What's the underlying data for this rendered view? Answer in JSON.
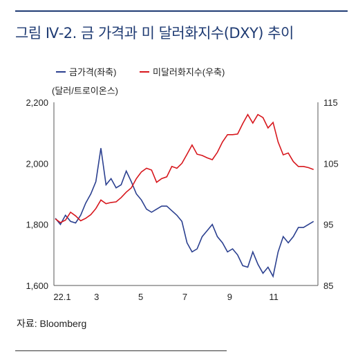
{
  "title": "그림 Ⅳ-2. 금 가격과 미 달러화지수(DXY) 추이",
  "source": "자료: Bloomberg",
  "chart_data": {
    "type": "line",
    "unit_label": "(달러/트로이온스)",
    "x_ticks": [
      "22.1",
      "3",
      "5",
      "7",
      "9",
      "11"
    ],
    "y_left": {
      "ticks": [
        "2,200",
        "2,000",
        "1,800",
        "1,600"
      ],
      "lim": [
        1600,
        2200
      ]
    },
    "y_right": {
      "ticks": [
        "115",
        "105",
        "95",
        "85"
      ],
      "lim": [
        85,
        115
      ]
    },
    "grid": false,
    "legend_position": "top-left",
    "series": [
      {
        "name": "금가격(좌축)",
        "axis": "left",
        "color": "#2a3f8f",
        "x": [
          "2022-01-03",
          "2022-01-10",
          "2022-01-17",
          "2022-01-24",
          "2022-01-31",
          "2022-02-07",
          "2022-02-14",
          "2022-02-21",
          "2022-02-28",
          "2022-03-07",
          "2022-03-14",
          "2022-03-21",
          "2022-03-28",
          "2022-04-04",
          "2022-04-11",
          "2022-04-18",
          "2022-04-25",
          "2022-05-02",
          "2022-05-09",
          "2022-05-16",
          "2022-05-23",
          "2022-05-30",
          "2022-06-06",
          "2022-06-13",
          "2022-06-20",
          "2022-06-27",
          "2022-07-04",
          "2022-07-11",
          "2022-07-18",
          "2022-07-25",
          "2022-08-01",
          "2022-08-08",
          "2022-08-15",
          "2022-08-22",
          "2022-08-29",
          "2022-09-05",
          "2022-09-12",
          "2022-09-19",
          "2022-09-26",
          "2022-10-03",
          "2022-10-10",
          "2022-10-17",
          "2022-10-24",
          "2022-10-31",
          "2022-11-07",
          "2022-11-14",
          "2022-11-21",
          "2022-11-28",
          "2022-12-05",
          "2022-12-12",
          "2022-12-19",
          "2022-12-26"
        ],
        "values": [
          1820,
          1800,
          1830,
          1810,
          1805,
          1830,
          1870,
          1900,
          1940,
          2050,
          1930,
          1950,
          1920,
          1930,
          1975,
          1940,
          1900,
          1880,
          1850,
          1840,
          1850,
          1860,
          1860,
          1845,
          1830,
          1810,
          1740,
          1710,
          1720,
          1760,
          1780,
          1800,
          1760,
          1740,
          1710,
          1720,
          1700,
          1665,
          1660,
          1710,
          1670,
          1640,
          1660,
          1630,
          1710,
          1760,
          1740,
          1760,
          1790,
          1790,
          1800,
          1810
        ]
      },
      {
        "name": "미달러화지수(우축)",
        "axis": "right",
        "color": "#d7161c",
        "x": [
          "2022-01-03",
          "2022-01-10",
          "2022-01-17",
          "2022-01-24",
          "2022-01-31",
          "2022-02-07",
          "2022-02-14",
          "2022-02-21",
          "2022-02-28",
          "2022-03-07",
          "2022-03-14",
          "2022-03-21",
          "2022-03-28",
          "2022-04-04",
          "2022-04-11",
          "2022-04-18",
          "2022-04-25",
          "2022-05-02",
          "2022-05-09",
          "2022-05-16",
          "2022-05-23",
          "2022-05-30",
          "2022-06-06",
          "2022-06-13",
          "2022-06-20",
          "2022-06-27",
          "2022-07-04",
          "2022-07-11",
          "2022-07-18",
          "2022-07-25",
          "2022-08-01",
          "2022-08-08",
          "2022-08-15",
          "2022-08-22",
          "2022-08-29",
          "2022-09-05",
          "2022-09-12",
          "2022-09-19",
          "2022-09-26",
          "2022-10-03",
          "2022-10-10",
          "2022-10-17",
          "2022-10-24",
          "2022-10-31",
          "2022-11-07",
          "2022-11-14",
          "2022-11-21",
          "2022-11-28",
          "2022-12-05",
          "2022-12-12",
          "2022-12-19",
          "2022-12-26"
        ],
        "values": [
          95.9,
          95.3,
          95.7,
          97.0,
          96.4,
          95.6,
          96.0,
          96.6,
          97.6,
          99.0,
          98.4,
          98.6,
          98.7,
          99.4,
          100.3,
          101.0,
          102.5,
          103.6,
          104.2,
          103.9,
          101.9,
          102.5,
          102.8,
          104.5,
          104.2,
          105.0,
          106.5,
          108.0,
          106.5,
          106.3,
          105.9,
          105.6,
          106.8,
          108.5,
          109.7,
          109.7,
          109.8,
          111.5,
          113.0,
          111.6,
          113.0,
          112.5,
          110.8,
          111.7,
          108.5,
          106.4,
          106.7,
          105.3,
          104.5,
          104.5,
          104.3,
          104.0
        ]
      }
    ]
  }
}
